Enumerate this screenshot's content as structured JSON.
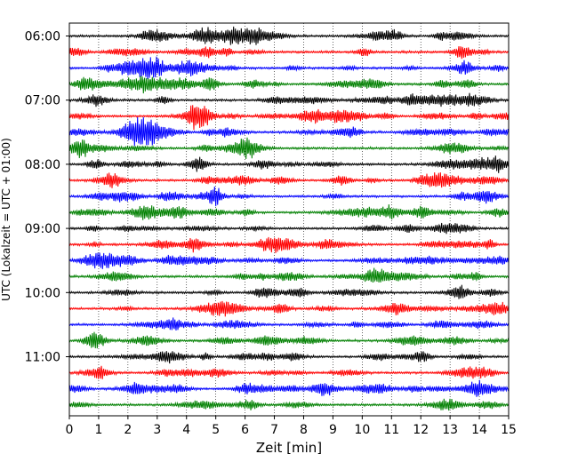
{
  "chart_data": {
    "type": "line",
    "title": "",
    "xlabel": "Zeit  [min]",
    "ylabel": "UTC (Lokalzeit = UTC + 01:00)",
    "xlim": [
      0,
      15
    ],
    "x_ticks": [
      "0",
      "1",
      "2",
      "3",
      "4",
      "5",
      "6",
      "7",
      "8",
      "9",
      "10",
      "11",
      "12",
      "13",
      "14",
      "15"
    ],
    "y_tick_labels": [
      "06:00",
      "07:00",
      "08:00",
      "09:00",
      "10:00",
      "11:00"
    ],
    "grid": "vertical dotted",
    "trace_count": 24,
    "minutes_per_trace": 15,
    "trace_colors": [
      "#000000",
      "#ff0000",
      "#0000ff",
      "#008000"
    ]
  }
}
